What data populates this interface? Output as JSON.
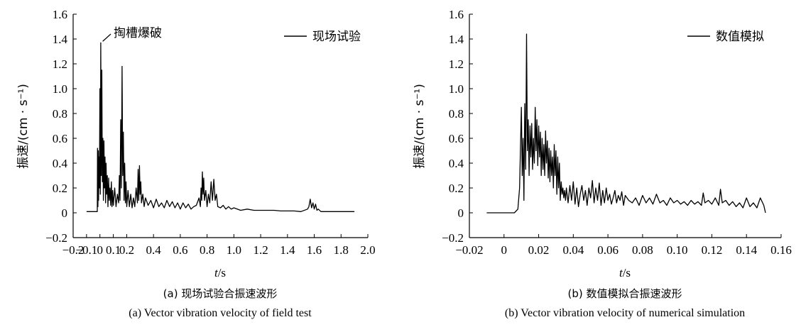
{
  "chart_data": [
    {
      "type": "line",
      "panel": "a",
      "caption_cn": "(a) 现场试验合振速波形",
      "caption_en": "(a) Vector vibration velocity of field test",
      "xlabel_italic": "t",
      "xlabel_unit": "/s",
      "ylabel": "振速/(cm · s⁻¹)",
      "xlim": [
        -0.2,
        2.0
      ],
      "ylim": [
        -0.2,
        1.6
      ],
      "xticks": [
        "−0.2",
        "−0.1",
        "0",
        "0.1",
        "0.2",
        "0.4",
        "0.6",
        "0.8",
        "1.0",
        "1.2",
        "1.4",
        "1.6",
        "1.8",
        "2.0"
      ],
      "xtick_values": [
        -0.2,
        -0.1,
        0,
        0.1,
        0.2,
        0.4,
        0.6,
        0.8,
        1.0,
        1.2,
        1.4,
        1.6,
        1.8,
        2.0
      ],
      "yticks": [
        "−0.2",
        "0",
        "0.2",
        "0.4",
        "0.6",
        "0.8",
        "1.0",
        "1.2",
        "1.4",
        "1.6"
      ],
      "ytick_values": [
        -0.2,
        0,
        0.2,
        0.4,
        0.6,
        0.8,
        1.0,
        1.2,
        1.4,
        1.6
      ],
      "legend": "现场试验",
      "annotation": "掏槽爆破",
      "annotation_point": [
        0.01,
        1.37
      ],
      "series": [
        {
          "x": [
            -0.1,
            -0.03,
            -0.02,
            -0.018,
            -0.015,
            -0.012,
            -0.01,
            -0.007,
            -0.004,
            0.0,
            0.003,
            0.006,
            0.01,
            0.014,
            0.018,
            0.022,
            0.026,
            0.03,
            0.034,
            0.038,
            0.042,
            0.046,
            0.05,
            0.055,
            0.06,
            0.065,
            0.07,
            0.075,
            0.08,
            0.085,
            0.09,
            0.095,
            0.1,
            0.11,
            0.12,
            0.13,
            0.14,
            0.145,
            0.15,
            0.155,
            0.16,
            0.165,
            0.17,
            0.175,
            0.18,
            0.185,
            0.19,
            0.195,
            0.2,
            0.21,
            0.22,
            0.23,
            0.24,
            0.25,
            0.26,
            0.27,
            0.28,
            0.285,
            0.29,
            0.295,
            0.3,
            0.305,
            0.31,
            0.32,
            0.33,
            0.34,
            0.36,
            0.38,
            0.4,
            0.42,
            0.44,
            0.46,
            0.48,
            0.5,
            0.52,
            0.54,
            0.56,
            0.58,
            0.6,
            0.62,
            0.64,
            0.66,
            0.68,
            0.7,
            0.72,
            0.74,
            0.75,
            0.755,
            0.76,
            0.765,
            0.77,
            0.775,
            0.78,
            0.79,
            0.8,
            0.81,
            0.82,
            0.83,
            0.84,
            0.85,
            0.86,
            0.87,
            0.88,
            0.9,
            0.92,
            0.94,
            0.96,
            0.98,
            1.0,
            1.05,
            1.1,
            1.15,
            1.2,
            1.25,
            1.3,
            1.35,
            1.4,
            1.45,
            1.5,
            1.55,
            1.56,
            1.57,
            1.58,
            1.59,
            1.6,
            1.61,
            1.62,
            1.63,
            1.65,
            1.7,
            1.75,
            1.8,
            1.85,
            1.9
          ],
          "y": [
            0.01,
            0.01,
            0.01,
            0.52,
            0.05,
            0.5,
            0.1,
            0.45,
            0.2,
            1.0,
            0.15,
            1.37,
            0.3,
            1.15,
            0.25,
            0.6,
            0.1,
            0.58,
            0.2,
            0.45,
            0.08,
            0.4,
            0.15,
            0.3,
            0.05,
            0.28,
            0.1,
            0.2,
            0.06,
            0.25,
            0.05,
            0.18,
            0.06,
            0.2,
            0.05,
            0.15,
            0.08,
            0.3,
            0.1,
            0.75,
            0.2,
            1.18,
            0.3,
            0.65,
            0.1,
            0.4,
            0.08,
            0.25,
            0.05,
            0.18,
            0.05,
            0.15,
            0.04,
            0.12,
            0.05,
            0.2,
            0.08,
            0.35,
            0.1,
            0.38,
            0.15,
            0.25,
            0.08,
            0.15,
            0.05,
            0.12,
            0.06,
            0.1,
            0.04,
            0.11,
            0.05,
            0.08,
            0.04,
            0.1,
            0.05,
            0.09,
            0.04,
            0.08,
            0.03,
            0.08,
            0.04,
            0.07,
            0.03,
            0.05,
            0.06,
            0.12,
            0.05,
            0.2,
            0.1,
            0.33,
            0.15,
            0.28,
            0.1,
            0.18,
            0.05,
            0.15,
            0.08,
            0.25,
            0.1,
            0.27,
            0.1,
            0.15,
            0.05,
            0.04,
            0.06,
            0.03,
            0.05,
            0.03,
            0.04,
            0.02,
            0.03,
            0.02,
            0.02,
            0.02,
            0.02,
            0.015,
            0.015,
            0.015,
            0.01,
            0.03,
            0.05,
            0.11,
            0.04,
            0.08,
            0.03,
            0.07,
            0.02,
            0.03,
            0.01,
            0.01,
            0.01,
            0.01,
            0.01,
            0.01
          ]
        }
      ]
    },
    {
      "type": "line",
      "panel": "b",
      "caption_cn": "(b) 数值模拟合振速波形",
      "caption_en": "(b) Vector vibration velocity of numerical simulation",
      "xlabel_italic": "t",
      "xlabel_unit": "/s",
      "ylabel": "振速/(cm · s⁻¹)",
      "xlim": [
        -0.02,
        0.16
      ],
      "ylim": [
        -0.2,
        1.6
      ],
      "xticks": [
        "−0.02",
        "0",
        "0.02",
        "0.04",
        "0.06",
        "0.08",
        "0.10",
        "0.12",
        "0.14",
        "0.16"
      ],
      "xtick_values": [
        -0.02,
        0,
        0.02,
        0.04,
        0.06,
        0.08,
        0.1,
        0.12,
        0.14,
        0.16
      ],
      "yticks": [
        "−0.2",
        "0",
        "0.2",
        "0.4",
        "0.6",
        "0.8",
        "1.0",
        "1.2",
        "1.4",
        "1.6"
      ],
      "ytick_values": [
        -0.2,
        0,
        0.2,
        0.4,
        0.6,
        0.8,
        1.0,
        1.2,
        1.4,
        1.6
      ],
      "legend": "数值模拟",
      "series": [
        {
          "x": [
            -0.01,
            0.006,
            0.008,
            0.009,
            0.01,
            0.0105,
            0.011,
            0.0115,
            0.012,
            0.0125,
            0.013,
            0.0135,
            0.014,
            0.0145,
            0.015,
            0.0155,
            0.016,
            0.0165,
            0.017,
            0.0175,
            0.018,
            0.0185,
            0.019,
            0.0195,
            0.02,
            0.0205,
            0.021,
            0.0215,
            0.022,
            0.0225,
            0.023,
            0.0235,
            0.024,
            0.0245,
            0.025,
            0.0255,
            0.026,
            0.0265,
            0.027,
            0.0275,
            0.028,
            0.0285,
            0.029,
            0.0295,
            0.03,
            0.0305,
            0.031,
            0.0315,
            0.032,
            0.0325,
            0.033,
            0.0335,
            0.034,
            0.0345,
            0.035,
            0.0355,
            0.036,
            0.037,
            0.038,
            0.039,
            0.04,
            0.041,
            0.042,
            0.043,
            0.044,
            0.045,
            0.046,
            0.047,
            0.048,
            0.049,
            0.05,
            0.051,
            0.052,
            0.053,
            0.054,
            0.055,
            0.056,
            0.057,
            0.058,
            0.059,
            0.06,
            0.061,
            0.062,
            0.063,
            0.064,
            0.065,
            0.066,
            0.067,
            0.068,
            0.069,
            0.07,
            0.072,
            0.074,
            0.076,
            0.078,
            0.08,
            0.082,
            0.084,
            0.086,
            0.088,
            0.09,
            0.092,
            0.094,
            0.096,
            0.098,
            0.1,
            0.102,
            0.104,
            0.106,
            0.108,
            0.11,
            0.112,
            0.114,
            0.115,
            0.116,
            0.118,
            0.12,
            0.122,
            0.124,
            0.125,
            0.126,
            0.128,
            0.13,
            0.132,
            0.134,
            0.136,
            0.138,
            0.14,
            0.142,
            0.144,
            0.146,
            0.148,
            0.15,
            0.151
          ],
          "y": [
            0,
            0,
            0.03,
            0.2,
            0.85,
            0.3,
            0.6,
            0.1,
            0.88,
            0.35,
            1.44,
            0.5,
            0.75,
            0.3,
            0.7,
            0.45,
            0.72,
            0.35,
            0.6,
            0.4,
            0.85,
            0.5,
            0.75,
            0.38,
            0.7,
            0.45,
            0.65,
            0.3,
            0.6,
            0.35,
            0.55,
            0.3,
            0.66,
            0.4,
            0.58,
            0.28,
            0.52,
            0.25,
            0.5,
            0.3,
            0.45,
            0.2,
            0.55,
            0.3,
            0.5,
            0.15,
            0.45,
            0.2,
            0.4,
            0.1,
            0.25,
            0.15,
            0.2,
            0.12,
            0.18,
            0.1,
            0.2,
            0.08,
            0.22,
            0.1,
            0.25,
            0.07,
            0.2,
            0.05,
            0.15,
            0.22,
            0.1,
            0.18,
            0.06,
            0.2,
            0.12,
            0.26,
            0.08,
            0.2,
            0.1,
            0.24,
            0.06,
            0.18,
            0.08,
            0.2,
            0.1,
            0.15,
            0.07,
            0.12,
            0.18,
            0.08,
            0.14,
            0.1,
            0.17,
            0.06,
            0.14,
            0.1,
            0.08,
            0.12,
            0.06,
            0.14,
            0.08,
            0.12,
            0.07,
            0.15,
            0.08,
            0.1,
            0.06,
            0.12,
            0.08,
            0.1,
            0.07,
            0.09,
            0.06,
            0.1,
            0.07,
            0.09,
            0.06,
            0.16,
            0.08,
            0.1,
            0.07,
            0.12,
            0.06,
            0.19,
            0.08,
            0.1,
            0.06,
            0.09,
            0.05,
            0.08,
            0.04,
            0.12,
            0.05,
            0.08,
            0.04,
            0.12,
            0.06,
            0.0
          ]
        }
      ]
    }
  ]
}
